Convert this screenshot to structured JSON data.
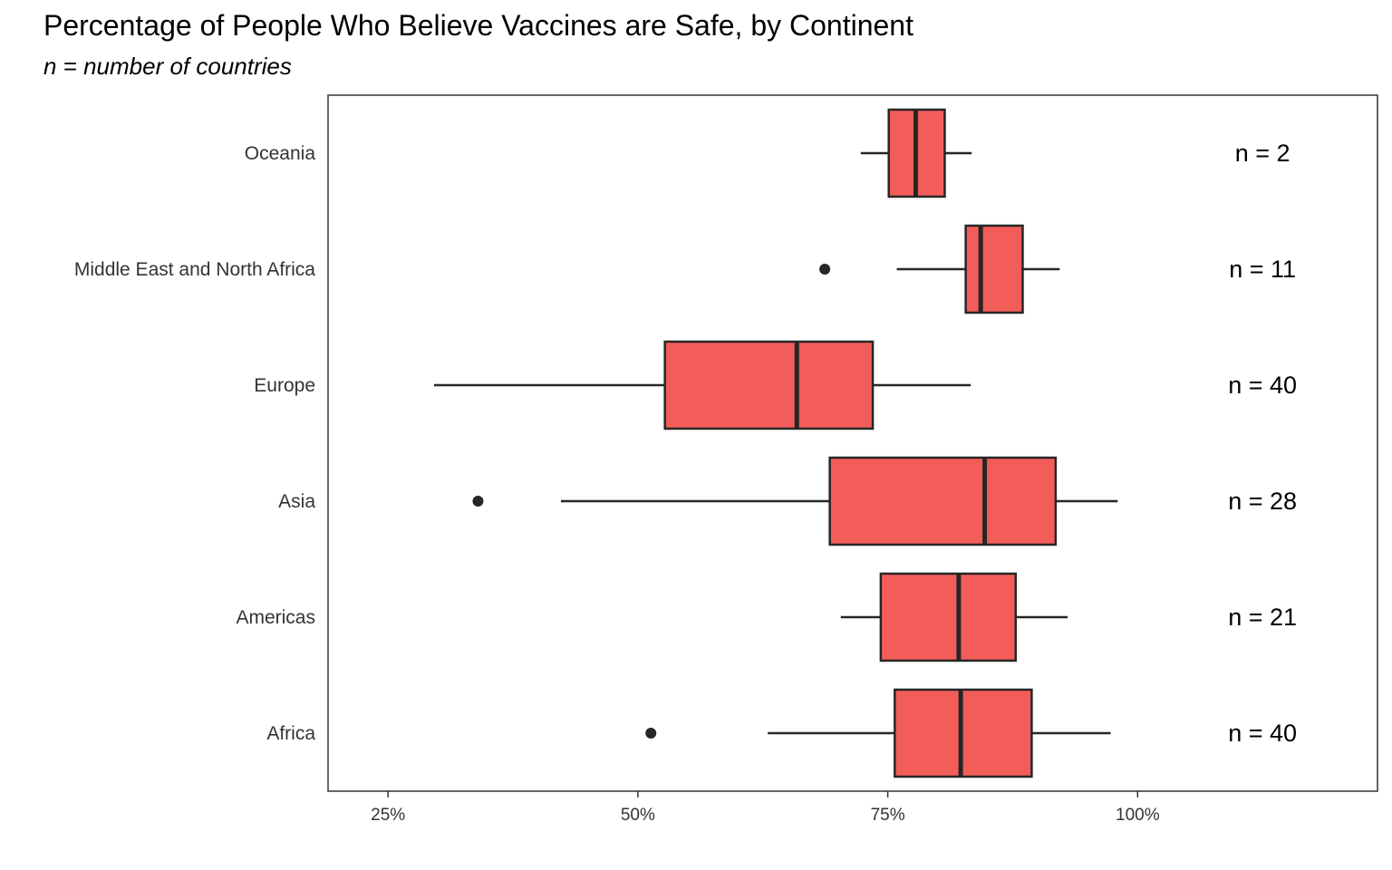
{
  "title": "Percentage of People Who Believe Vaccines are Safe, by Continent",
  "subtitle": "n = number of countries",
  "chart_data": {
    "type": "boxplot",
    "orientation": "horizontal",
    "title": "Percentage of People Who Believe Vaccines are Safe, by Continent",
    "subtitle": "n = number of countries",
    "xlabel": "",
    "ylabel": "",
    "xlim": [
      19,
      124
    ],
    "x_ticks": [
      25,
      50,
      75,
      100
    ],
    "x_tick_labels": [
      "25%",
      "50%",
      "75%",
      "100%"
    ],
    "grid": false,
    "legend": "none",
    "box_color": "#F25D5A",
    "outline_color": "#262626",
    "categories": [
      "Oceania",
      "Middle East and North Africa",
      "Europe",
      "Asia",
      "Americas",
      "Africa"
    ],
    "boxes": [
      {
        "category": "Oceania",
        "whisker_low": 72.3,
        "q1": 75.1,
        "median": 77.8,
        "q3": 80.7,
        "whisker_high": 83.4,
        "outliers": [],
        "n_label": "n = 2"
      },
      {
        "category": "Middle East and North Africa",
        "whisker_low": 75.9,
        "q1": 82.8,
        "median": 84.3,
        "q3": 88.5,
        "whisker_high": 92.2,
        "outliers": [
          68.7
        ],
        "n_label": "n = 11"
      },
      {
        "category": "Europe",
        "whisker_low": 29.6,
        "q1": 52.7,
        "median": 65.9,
        "q3": 73.5,
        "whisker_high": 83.3,
        "outliers": [],
        "n_label": "n = 40"
      },
      {
        "category": "Asia",
        "whisker_low": 42.3,
        "q1": 69.2,
        "median": 84.7,
        "q3": 91.8,
        "whisker_high": 98.0,
        "outliers": [
          34.0
        ],
        "n_label": "n = 28"
      },
      {
        "category": "Americas",
        "whisker_low": 70.3,
        "q1": 74.3,
        "median": 82.1,
        "q3": 87.8,
        "whisker_high": 93.0,
        "outliers": [],
        "n_label": "n = 21"
      },
      {
        "category": "Africa",
        "whisker_low": 63.0,
        "q1": 75.7,
        "median": 82.3,
        "q3": 89.4,
        "whisker_high": 97.3,
        "outliers": [
          51.3
        ],
        "n_label": "n = 40"
      }
    ]
  }
}
